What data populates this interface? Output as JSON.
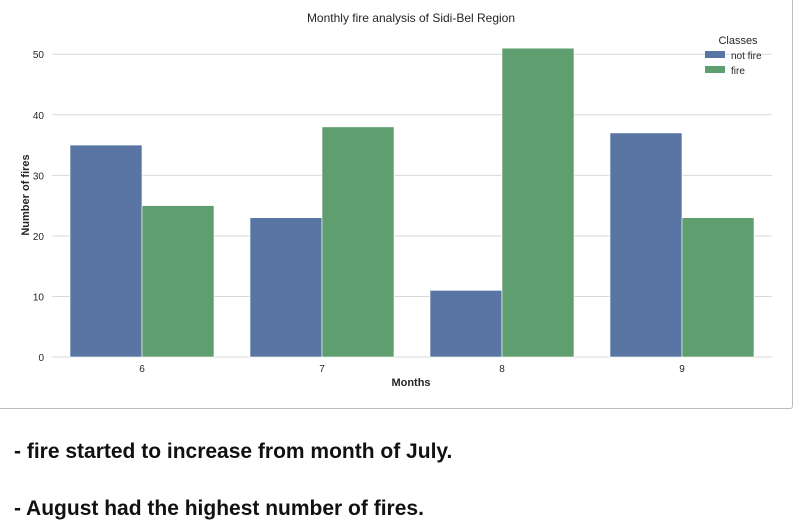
{
  "chart_data": {
    "type": "bar",
    "title": "Monthly fire analysis of Sidi-Bel Region",
    "xlabel": "Months",
    "ylabel": "Number of fires",
    "categories": [
      "6",
      "7",
      "8",
      "9"
    ],
    "series": [
      {
        "name": "not fire",
        "values": [
          35,
          23,
          11,
          37
        ],
        "color": "#5875a4"
      },
      {
        "name": "fire",
        "values": [
          25,
          38,
          51,
          23
        ],
        "color": "#5f9e6e"
      }
    ],
    "ylim": [
      0,
      54
    ],
    "yticks": [
      0,
      10,
      20,
      30,
      40,
      50
    ],
    "grid": true,
    "legend": {
      "title": "Classes",
      "placement": "top-right"
    }
  },
  "notes": [
    "- fire started to increase from month of July.",
    "- August had the highest number of fires."
  ]
}
